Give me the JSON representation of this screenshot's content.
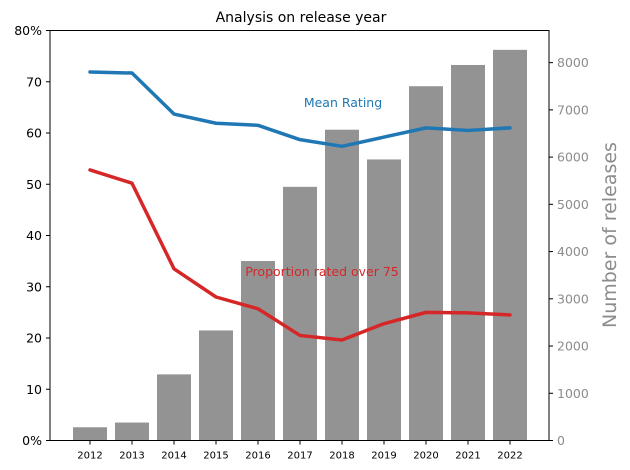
{
  "chart_data": {
    "type": "bar",
    "title": "Analysis on release year",
    "categories": [
      "2012",
      "2013",
      "2014",
      "2015",
      "2016",
      "2017",
      "2018",
      "2019",
      "2020",
      "2021",
      "2022"
    ],
    "bars": {
      "name": "Number of releases",
      "axis": "right",
      "values": [
        280,
        380,
        1400,
        2330,
        3800,
        5370,
        6580,
        5950,
        7500,
        7950,
        8270
      ],
      "color": "#939393"
    },
    "lines": [
      {
        "name": "Mean Rating",
        "axis": "left",
        "color": "#1f77b4",
        "values": [
          71.9,
          71.7,
          63.7,
          61.9,
          61.5,
          58.7,
          57.4,
          59.2,
          61.0,
          60.5,
          61.0
        ],
        "label_text": "Mean Rating"
      },
      {
        "name": "Proportion rated over 75",
        "axis": "left",
        "color": "#d62728",
        "values": [
          52.8,
          50.2,
          33.5,
          28.0,
          25.7,
          20.5,
          19.6,
          22.8,
          25.0,
          24.9,
          24.5
        ],
        "label_text": "Proportion rated over 75"
      }
    ],
    "left_axis": {
      "ylim": [
        0,
        80
      ],
      "ticks": [
        "0%",
        "10",
        "20",
        "30",
        "40",
        "50",
        "60",
        "70",
        "80%"
      ],
      "tick_values": [
        0,
        10,
        20,
        30,
        40,
        50,
        60,
        70,
        80
      ]
    },
    "right_axis": {
      "label": "Number of releases",
      "ylim": [
        0,
        8680
      ],
      "ticks": [
        "0",
        "1000",
        "2000",
        "3000",
        "4000",
        "5000",
        "6000",
        "7000",
        "8000"
      ],
      "tick_values": [
        0,
        1000,
        2000,
        3000,
        4000,
        5000,
        6000,
        7000,
        8000
      ],
      "color": "#8c8c8c"
    }
  }
}
